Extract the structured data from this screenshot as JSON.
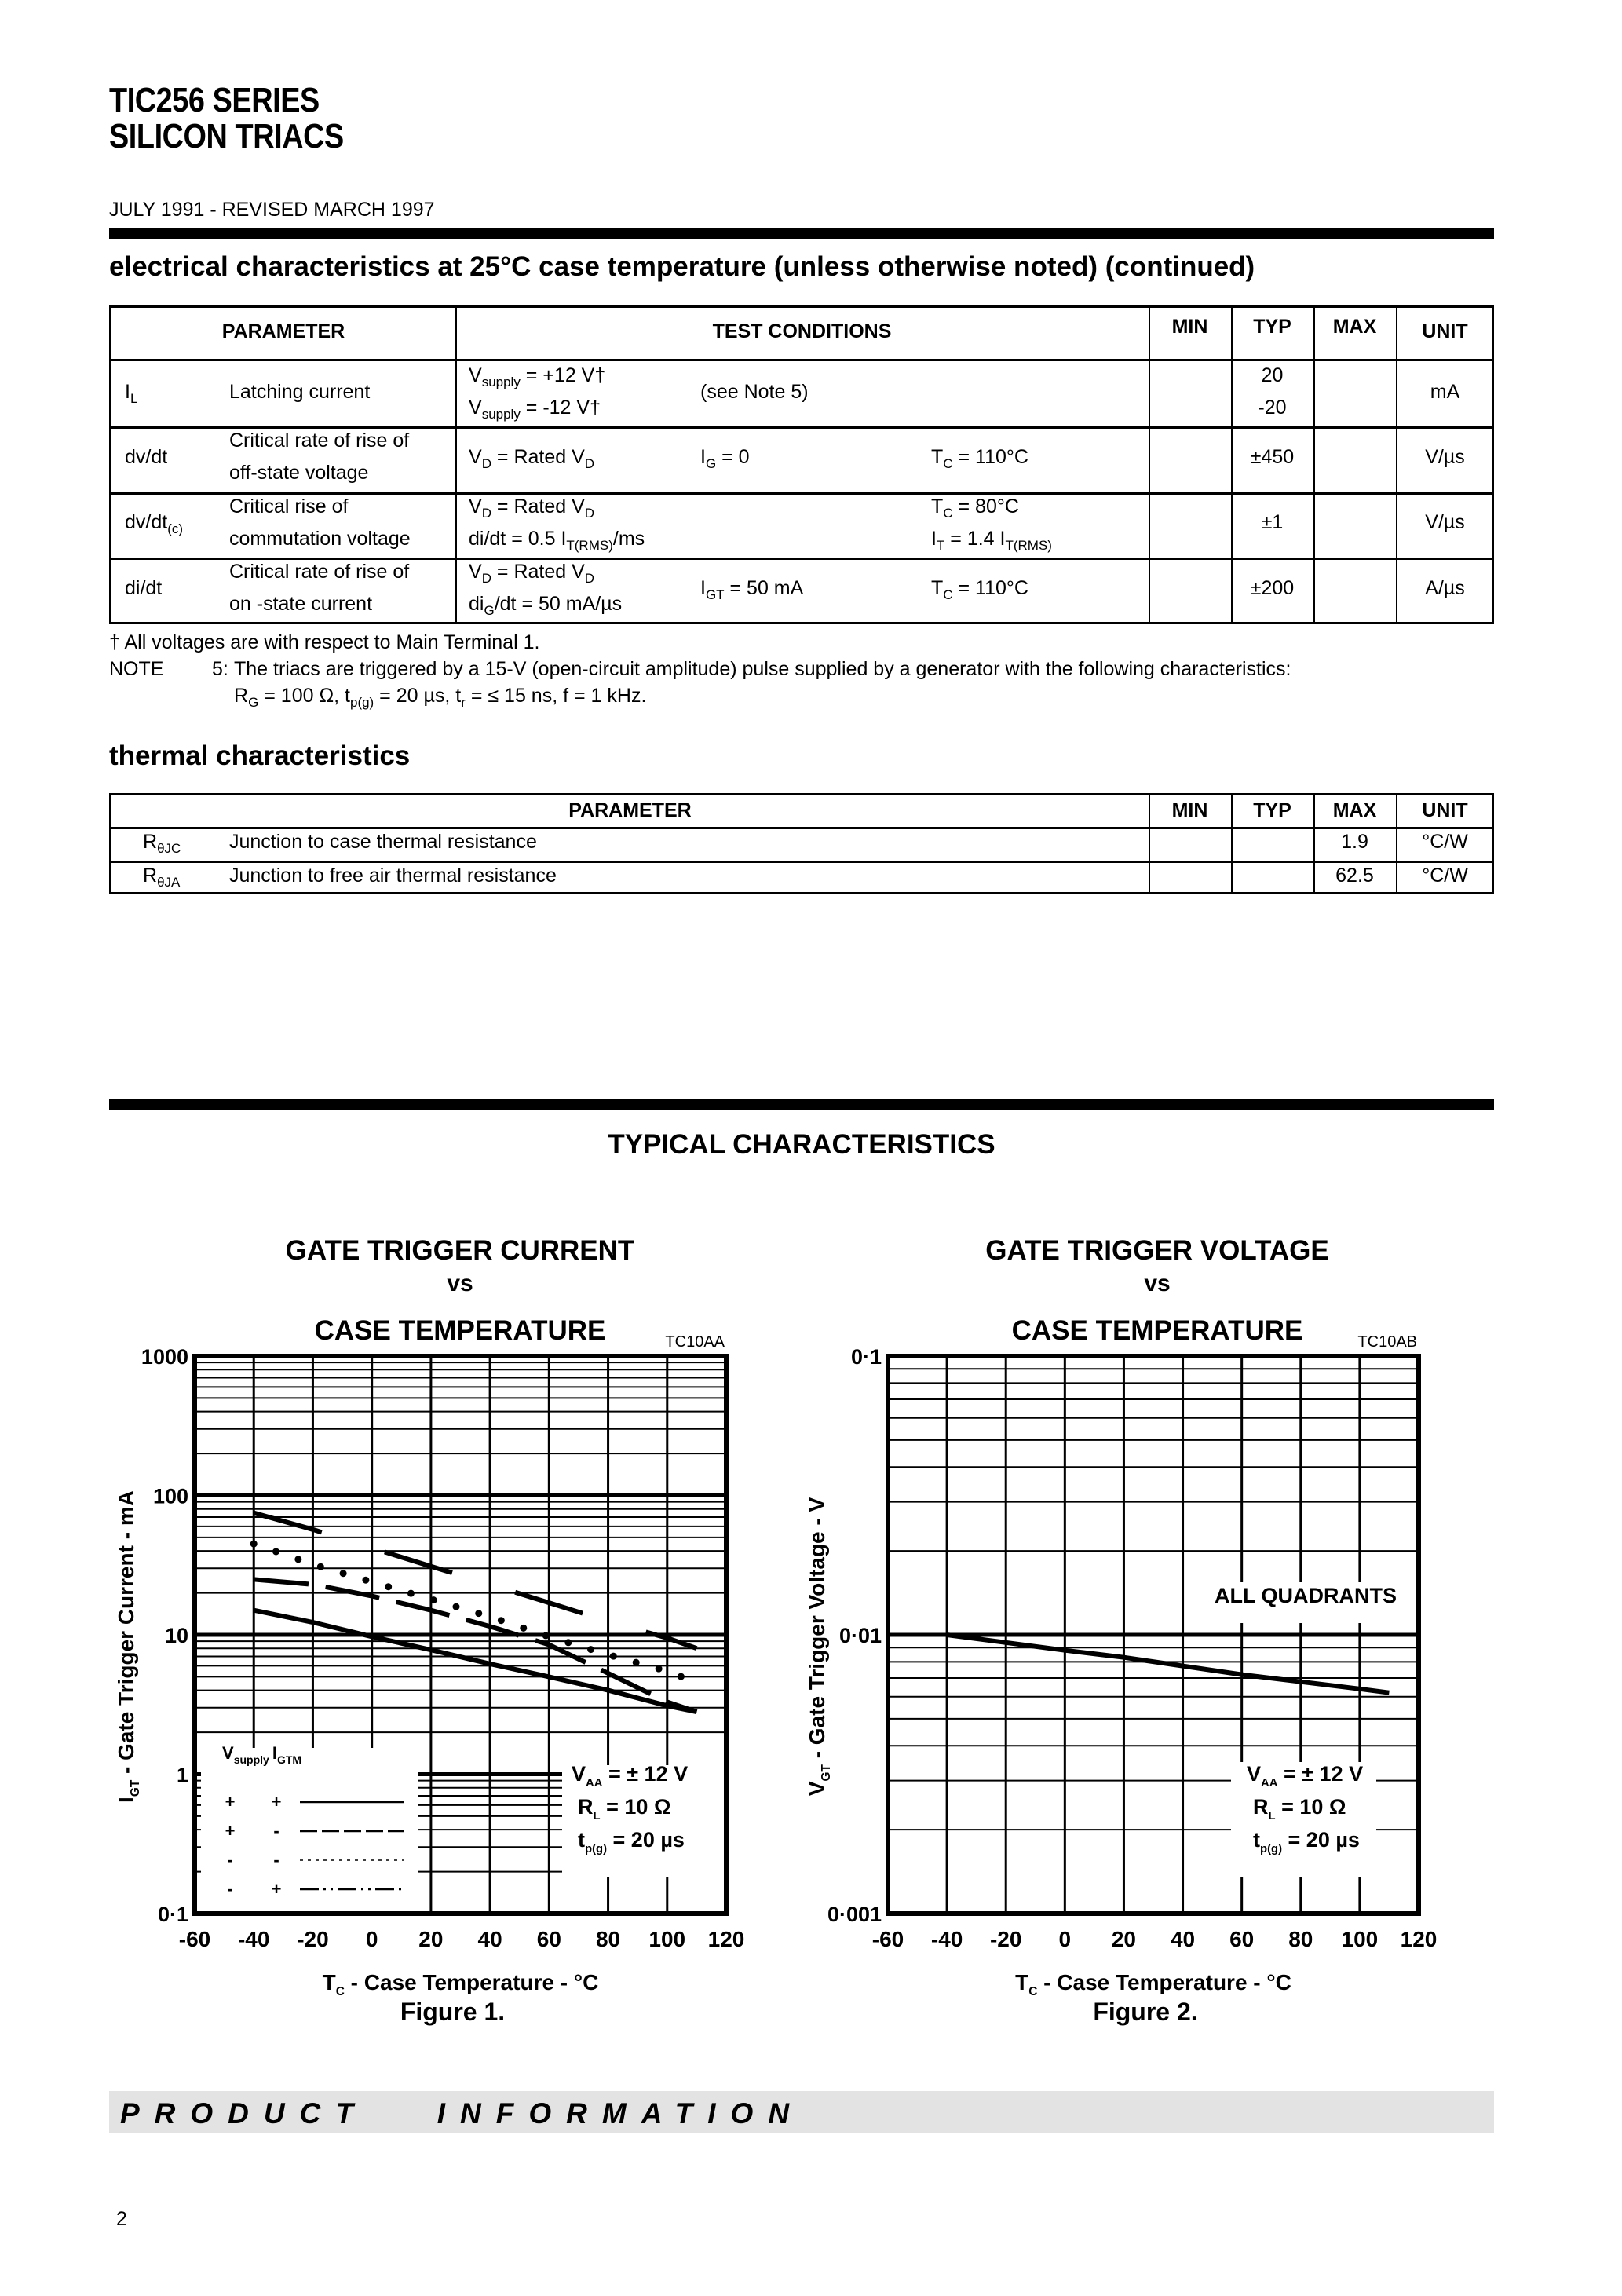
{
  "header": {
    "title_line1": "TIC256 SERIES",
    "title_line2": "SILICON TRIACS",
    "date": "JULY 1991 - REVISED MARCH 1997"
  },
  "electrical": {
    "heading": "electrical characteristics at 25°C case temperature (unless otherwise noted) (continued)",
    "columns": [
      "PARAMETER",
      "TEST CONDITIONS",
      "MIN",
      "TYP",
      "MAX",
      "UNIT"
    ],
    "rows": [
      {
        "sym": "I",
        "sym_sub": "L",
        "name": [
          "Latching current"
        ],
        "c1a": {
          "m": "V",
          "s": "supply",
          "r": " = +12 V†"
        },
        "c1b": {
          "m": "V",
          "s": "supply",
          "r": " =  -12 V†"
        },
        "c2": "(see Note 5)",
        "typ": [
          "20",
          "-20"
        ],
        "unit": "mA"
      },
      {
        "sym": "dv/dt",
        "name": [
          "Critical rate of rise of",
          "off-state voltage"
        ],
        "c1": {
          "m": "V",
          "s": "D",
          "r": " = Rated V",
          "s2": "D"
        },
        "c2": {
          "m": "I",
          "s": "G",
          "r": " = 0"
        },
        "c3": {
          "m": "T",
          "s": "C",
          "r": " = 110°C"
        },
        "typ": "±450",
        "unit": "V/µs"
      },
      {
        "sym": "dv/dt",
        "sym_sub": "(c)",
        "name": [
          "Critical rise of",
          "commutation voltage"
        ],
        "c1a": {
          "m": "V",
          "s": "D",
          "r": " = Rated V",
          "s2": "D"
        },
        "c1b": {
          "m": "di/dt = 0.5 I",
          "s": "T(RMS)",
          "r": "/ms"
        },
        "c3a": {
          "m": "T",
          "s": "C",
          "r": " = 80°C"
        },
        "c3b": {
          "m": "I",
          "s": "T",
          "r": " = 1.4 I",
          "s2": "T(RMS)"
        },
        "typ": "±1",
        "unit": "V/µs"
      },
      {
        "sym": "di/dt",
        "name": [
          "Critical rate of rise of",
          "on -state current"
        ],
        "c1a": {
          "m": "V",
          "s": "D",
          "r": " = Rated V",
          "s2": "D"
        },
        "c1b": {
          "m": "di",
          "s": "G",
          "r": "/dt = 50 mA/µs"
        },
        "c2": {
          "m": "I",
          "s": "GT",
          "r": " = 50 mA"
        },
        "c3": {
          "m": "T",
          "s": "C",
          "r": " = 110°C"
        },
        "typ": "±200",
        "unit": "A/µs"
      }
    ]
  },
  "notes": {
    "dagger": "† All voltages are with respect to Main Terminal 1.",
    "note_label": "NOTE",
    "note_num": "5:",
    "note_text": "The triacs are triggered by a 15-V (open-circuit amplitude) pulse supplied by a generator with the following characteristics:",
    "note_line2": {
      "a": "R",
      "a_sub": "G",
      "b": " = 100 Ω, t",
      "b_sub": "p(g)",
      "c": " = 20 µs, t",
      "c_sub": "r",
      "d": " = ≤ 15 ns, f = 1 kHz."
    }
  },
  "thermal": {
    "heading": "thermal characteristics",
    "columns": [
      "PARAMETER",
      "MIN",
      "TYP",
      "MAX",
      "UNIT"
    ],
    "rows": [
      {
        "sym": "R",
        "sym_sub": "θJC",
        "name": "Junction to case thermal resistance",
        "max": "1.9",
        "unit": "°C/W"
      },
      {
        "sym": "R",
        "sym_sub": "θJA",
        "name": "Junction to free air thermal resistance",
        "max": "62.5",
        "unit": "°C/W"
      }
    ]
  },
  "typical": {
    "heading": "TYPICAL CHARACTERISTICS"
  },
  "chart_data": [
    {
      "type": "line",
      "title": [
        "GATE TRIGGER CURRENT",
        "vs",
        "CASE TEMPERATURE"
      ],
      "code": "TC10AA",
      "caption": "Figure 1.",
      "xlabel": {
        "m": "T",
        "s": "C",
        "r": " - Case Temperature - °C"
      },
      "ylabel": {
        "m": "I",
        "s": "GT",
        "r": " - Gate Trigger Current - mA"
      },
      "xlim": [
        -60,
        120
      ],
      "xticks": [
        -60,
        -40,
        -20,
        0,
        20,
        40,
        60,
        80,
        100,
        120
      ],
      "xtick_labels": [
        "-60",
        "-40",
        "-20",
        "0",
        "20",
        "40",
        "60",
        "80",
        "100",
        "120"
      ],
      "yscale": "log",
      "ylim": [
        0.1,
        1000
      ],
      "ytick_labels": [
        "0·1",
        "1",
        "10",
        "100",
        "1000"
      ],
      "grid": true,
      "legend": {
        "header": {
          "a": "V",
          "a_sub": "supply",
          "b": "I",
          "b_sub": "GTM"
        },
        "entries": [
          {
            "vs": "+",
            "ig": "+"
          },
          {
            "vs": "+",
            "ig": "-"
          },
          {
            "vs": "-",
            "ig": "-"
          },
          {
            "vs": "-",
            "ig": "+"
          }
        ],
        "placement": "bottom-left"
      },
      "conditions": [
        {
          "m": "V",
          "s": "AA",
          "r": " = ± 12 V"
        },
        {
          "m": "R",
          "s": "L",
          "r": " = 10 Ω"
        },
        {
          "m": "t",
          "s": "p(g)",
          "r": " = 20 µs"
        }
      ],
      "series": [
        {
          "name": "Vsupply + / IGTM +",
          "style": "solid",
          "x": [
            -40,
            -20,
            0,
            20,
            40,
            60,
            80,
            100,
            110
          ],
          "y": [
            15,
            12.3,
            9.7,
            7.8,
            6.2,
            5.0,
            4.0,
            3.1,
            2.8
          ]
        },
        {
          "name": "Vsupply + / IGTM -",
          "style": "dashed",
          "x": [
            -40,
            -20,
            0,
            20,
            40,
            60,
            80,
            100,
            110
          ],
          "y": [
            25,
            23,
            19,
            15,
            11.5,
            8.5,
            5.3,
            3.3,
            2.8
          ]
        },
        {
          "name": "Vsupply - / IGTM -",
          "style": "dotted",
          "x": [
            -40,
            -20,
            0,
            20,
            40,
            60,
            80,
            100,
            107
          ],
          "y": [
            45,
            32,
            24,
            18,
            13.5,
            9.7,
            7.2,
            5.5,
            4.8
          ]
        },
        {
          "name": "Vsupply - / IGTM +",
          "style": "dashdot",
          "x": [
            -40,
            -20,
            0,
            20,
            40,
            60,
            80,
            100,
            110
          ],
          "y": [
            75,
            57,
            42,
            31,
            23,
            17,
            12.5,
            9.5,
            8
          ]
        }
      ]
    },
    {
      "type": "line",
      "title": [
        "GATE TRIGGER VOLTAGE",
        "vs",
        "CASE TEMPERATURE"
      ],
      "code": "TC10AB",
      "caption": "Figure 2.",
      "xlabel": {
        "m": "T",
        "s": "C",
        "r": " - Case Temperature - °C"
      },
      "ylabel": {
        "m": "V",
        "s": "GT",
        "r": " - Gate Trigger Voltage - V"
      },
      "xlim": [
        -60,
        120
      ],
      "xticks": [
        -60,
        -40,
        -20,
        0,
        20,
        40,
        60,
        80,
        100,
        120
      ],
      "xtick_labels": [
        "-60",
        "-40",
        "-20",
        "0",
        "20",
        "40",
        "60",
        "80",
        "100",
        "120"
      ],
      "yscale": "log",
      "ylim": [
        0.001,
        0.1
      ],
      "ytick_labels": [
        "0·001",
        "0·01",
        "0·1"
      ],
      "grid": true,
      "annotation": "ALL QUADRANTS",
      "conditions": [
        {
          "m": "V",
          "s": "AA",
          "r": " = ± 12 V"
        },
        {
          "m": "R",
          "s": "L",
          "r": " = 10 Ω"
        },
        {
          "m": "t",
          "s": "p(g)",
          "r": " = 20 µs"
        }
      ],
      "series": [
        {
          "name": "All quadrants",
          "style": "solid",
          "x": [
            -40,
            0,
            20,
            60,
            100,
            110
          ],
          "y": [
            0.01,
            0.0088,
            0.0083,
            0.0072,
            0.0064,
            0.0062
          ]
        }
      ]
    }
  ],
  "footer": {
    "banner": "PRODUCT INFORMATION",
    "page": "2"
  }
}
